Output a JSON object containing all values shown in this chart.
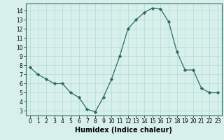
{
  "x": [
    0,
    1,
    2,
    3,
    4,
    5,
    6,
    7,
    8,
    9,
    10,
    11,
    12,
    13,
    14,
    15,
    16,
    17,
    18,
    19,
    20,
    21,
    22,
    23
  ],
  "y": [
    7.8,
    7.0,
    6.5,
    6.0,
    6.0,
    5.0,
    4.5,
    3.2,
    2.9,
    4.5,
    6.5,
    9.0,
    12.0,
    13.0,
    13.8,
    14.3,
    14.2,
    12.8,
    9.5,
    7.5,
    7.5,
    5.5,
    5.0,
    5.0
  ],
  "line_color": "#2d6b5e",
  "marker": "D",
  "marker_size": 2.2,
  "bg_color": "#d8f0ec",
  "grid_color": "#b8ddd8",
  "xlabel": "Humidex (Indice chaleur)",
  "ylim": [
    2.5,
    14.8
  ],
  "xlim": [
    -0.5,
    23.5
  ],
  "yticks": [
    3,
    4,
    5,
    6,
    7,
    8,
    9,
    10,
    11,
    12,
    13,
    14
  ],
  "xticks": [
    0,
    1,
    2,
    3,
    4,
    5,
    6,
    7,
    8,
    9,
    10,
    11,
    12,
    13,
    14,
    15,
    16,
    17,
    18,
    19,
    20,
    21,
    22,
    23
  ],
  "tick_fontsize": 5.5,
  "xlabel_fontsize": 7.0
}
